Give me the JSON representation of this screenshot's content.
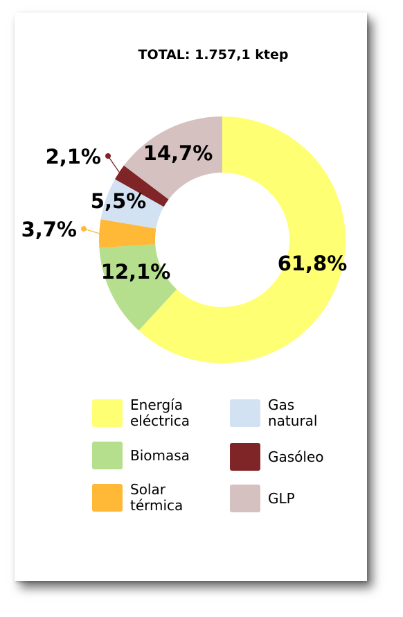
{
  "chart_data": {
    "type": "pie",
    "title": "TOTAL: 1.757,1 ktep",
    "hole": true,
    "legend_position": "bottom",
    "series": [
      {
        "name": "Energía eléctrica",
        "value": 61.8,
        "label": "61,8%",
        "color": "#FFFF73"
      },
      {
        "name": "Biomasa",
        "value": 12.1,
        "label": "12,1%",
        "color": "#B5DF8D"
      },
      {
        "name": "Solar térmica",
        "value": 3.7,
        "label": "3,7%",
        "color": "#FFB937"
      },
      {
        "name": "Gas natural",
        "value": 5.5,
        "label": "5,5%",
        "color": "#D3E2F2"
      },
      {
        "name": "Gasóleo",
        "value": 2.1,
        "label": "2,1%",
        "color": "#7F2427"
      },
      {
        "name": "GLP",
        "value": 14.7,
        "label": "14,7%",
        "color": "#D6C1C1"
      }
    ]
  },
  "legend": [
    {
      "label": "Energía\neléctrica",
      "color": "#FFFF73"
    },
    {
      "label": "Gas\nnatural",
      "color": "#D3E2F2"
    },
    {
      "label": "Biomasa",
      "color": "#B5DF8D"
    },
    {
      "label": "Gasóleo",
      "color": "#7F2427"
    },
    {
      "label": "Solar\ntérmica",
      "color": "#FFB937"
    },
    {
      "label": "GLP",
      "color": "#D6C1C1"
    }
  ]
}
